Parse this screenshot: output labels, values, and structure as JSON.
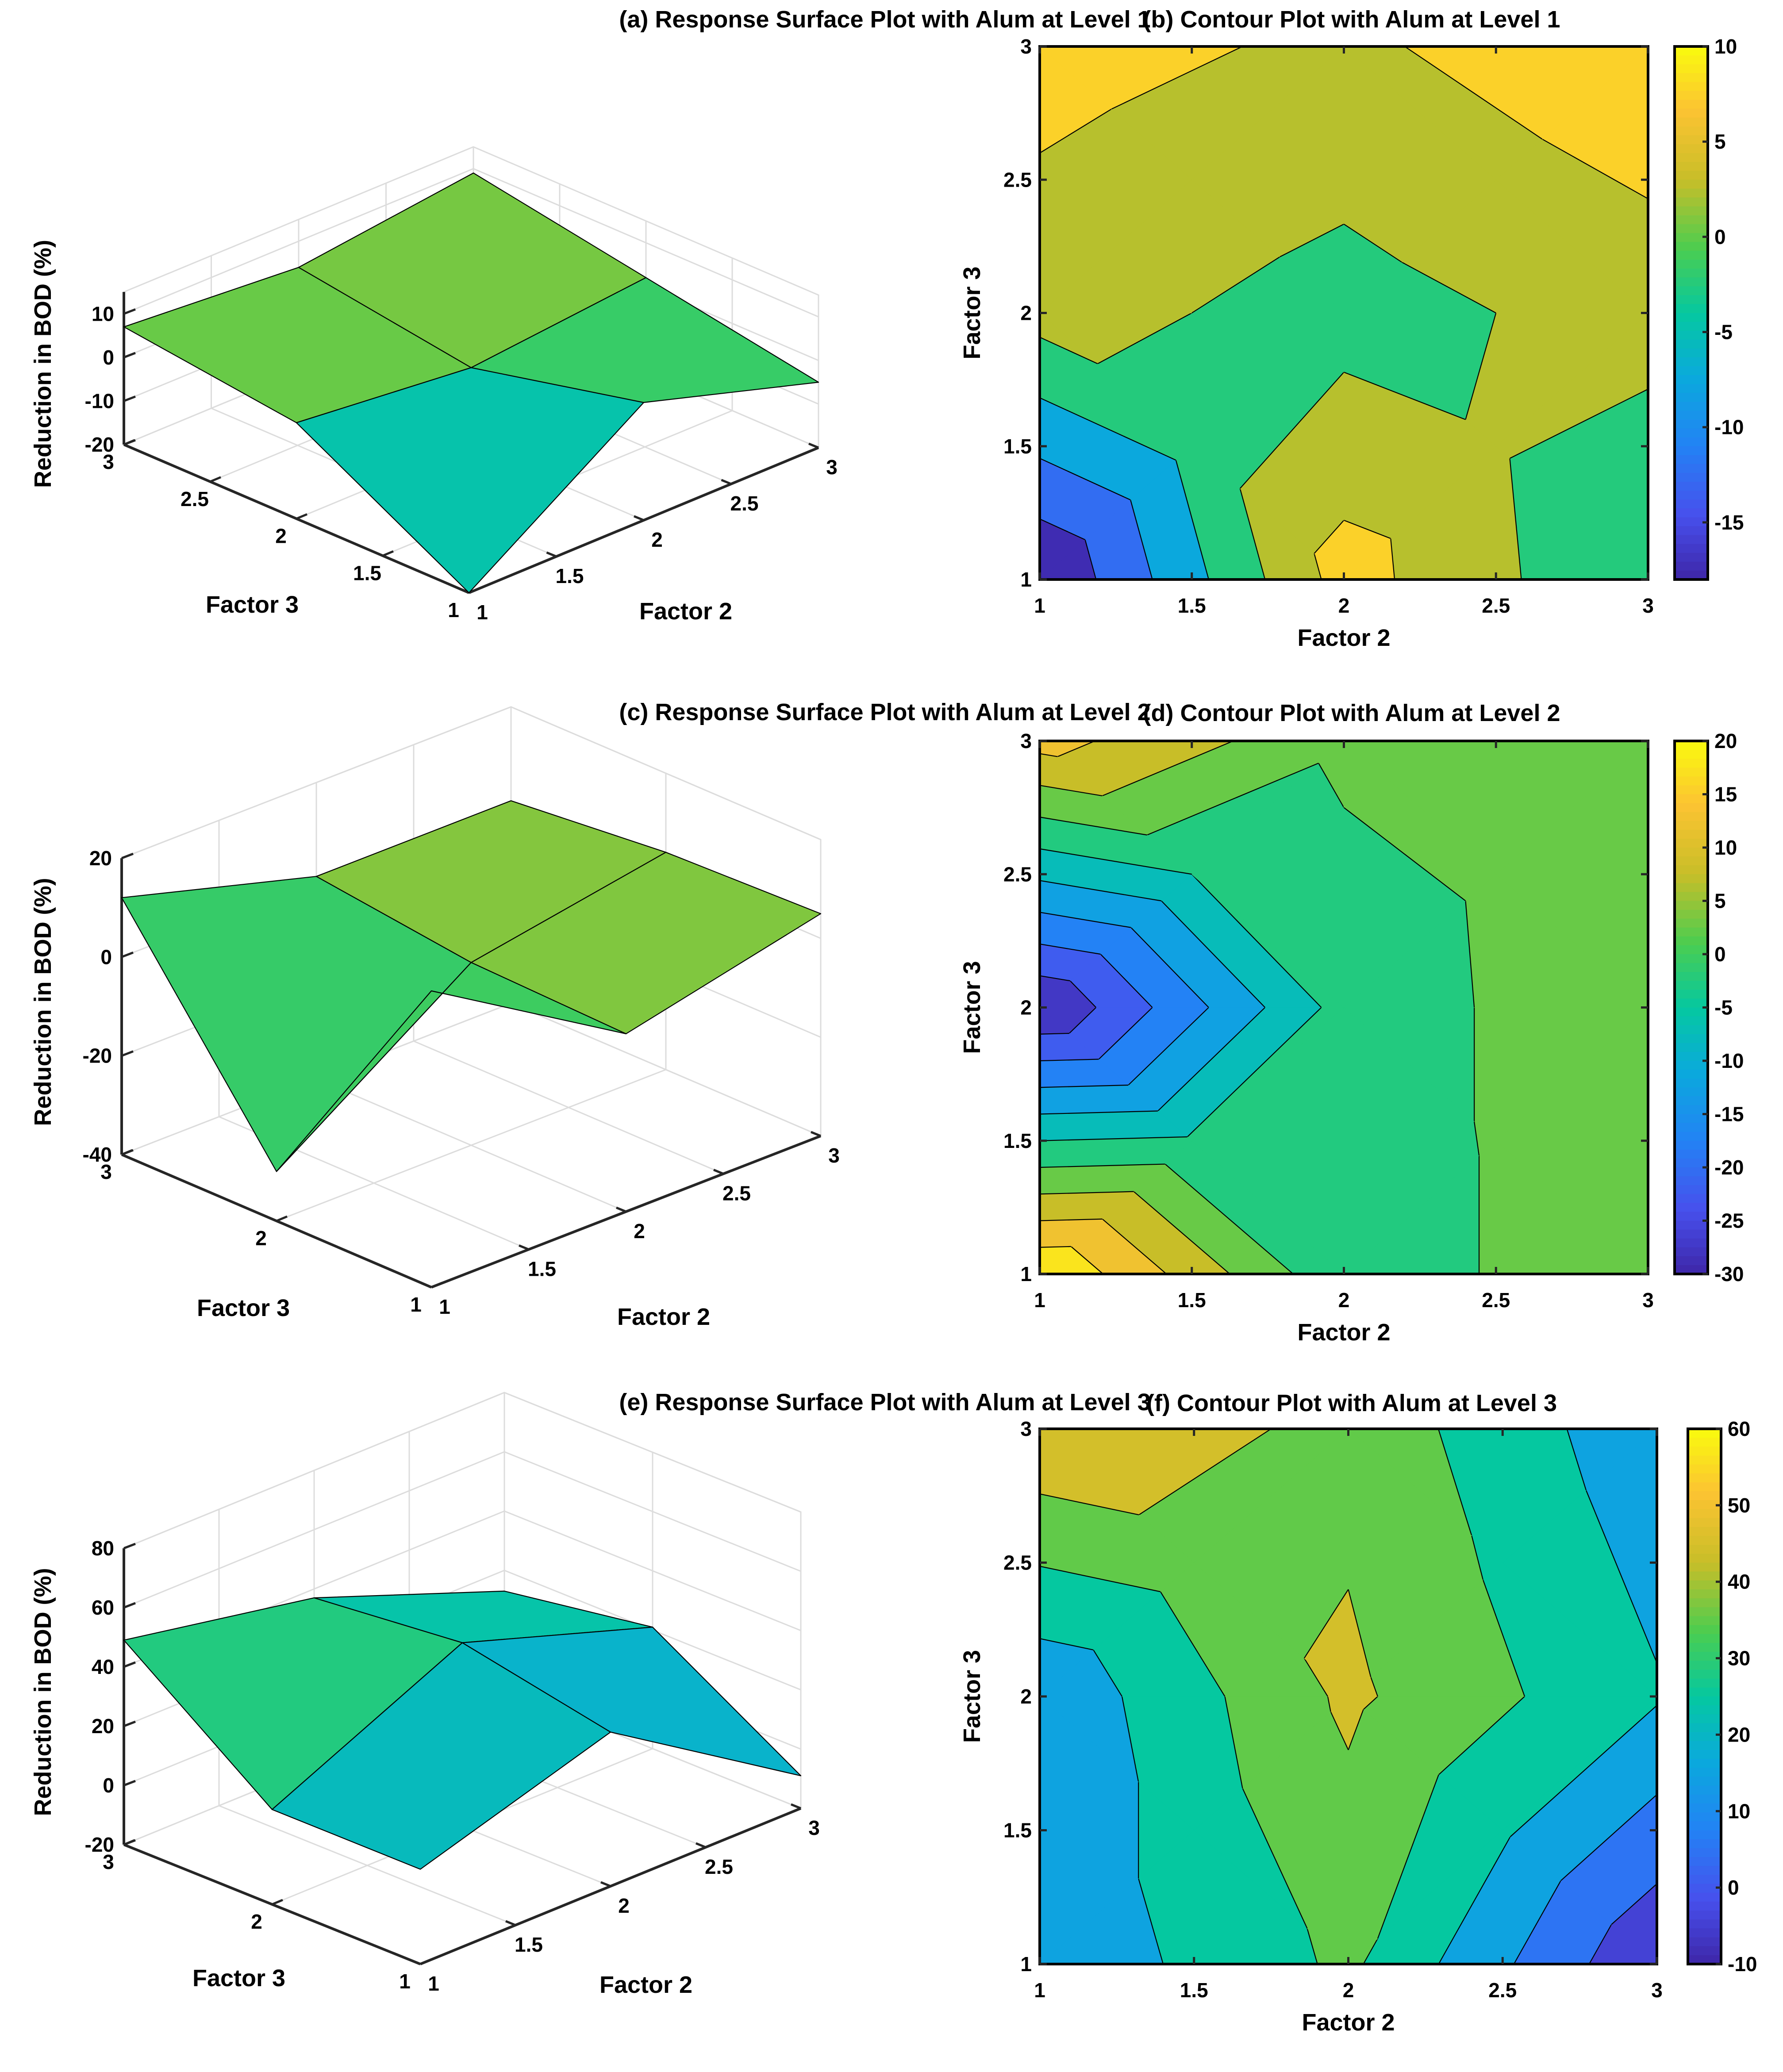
{
  "chart_data": [
    {
      "panel": "a",
      "type": "surface",
      "title": "(a) Response Surface Plot with Alum at Level 1",
      "xlabel": "Factor 2",
      "ylabel": "Factor 3",
      "zlabel": "Reduction in BOD (%)",
      "x": [
        1,
        2,
        3
      ],
      "y": [
        1,
        2,
        3
      ],
      "z": [
        [
          -20,
          7,
          -5
        ],
        [
          2,
          -2,
          2
        ],
        [
          7,
          4,
          9
        ]
      ],
      "zlim": [
        -20,
        15
      ],
      "xticks": [
        "1",
        "1.5",
        "2",
        "2.5",
        "3"
      ],
      "yticks": [
        "1",
        "1.5",
        "2",
        "2.5",
        "3"
      ],
      "zticks": [
        "-20",
        "-10",
        "0",
        "10"
      ],
      "grid": true
    },
    {
      "panel": "b",
      "type": "contour",
      "title": "(b) Contour Plot with Alum at Level 1",
      "xlabel": "Factor 2",
      "ylabel": "Factor 3",
      "x": [
        1,
        2,
        3
      ],
      "y": [
        1,
        2,
        3
      ],
      "z": [
        [
          -20,
          7,
          -5
        ],
        [
          2,
          -2,
          2
        ],
        [
          7,
          4,
          9
        ]
      ],
      "levels": [
        -15,
        -10,
        -5,
        0,
        5
      ],
      "clim": [
        -18,
        10
      ],
      "xticks": [
        "1",
        "1.5",
        "2",
        "2.5",
        "3"
      ],
      "yticks": [
        "1",
        "1.5",
        "2",
        "2.5",
        "3"
      ],
      "colorbar_ticks": [
        "-15",
        "-10",
        "-5",
        "0",
        "5",
        "10"
      ],
      "grid": false
    },
    {
      "panel": "c",
      "type": "surface",
      "title": "(c) Response Surface Plot with Alum at Level 2",
      "xlabel": "Factor 2",
      "ylabel": "Factor 3",
      "zlabel": "Reduction in BOD (%)",
      "x": [
        1,
        2,
        3
      ],
      "y": [
        1,
        2,
        3
      ],
      "z": [
        [
          20,
          -4,
          5
        ],
        [
          -30,
          -3,
          4
        ],
        [
          12,
          1,
          1
        ]
      ],
      "zlim": [
        -40,
        20
      ],
      "xticks": [
        "1",
        "1.5",
        "2",
        "2.5",
        "3"
      ],
      "yticks": [
        "1",
        "2",
        "3"
      ],
      "zticks": [
        "-40",
        "-20",
        "0",
        "20"
      ],
      "grid": true
    },
    {
      "panel": "d",
      "type": "contour",
      "title": "(d) Contour Plot with Alum at Level 2",
      "xlabel": "Factor 2",
      "ylabel": "Factor 3",
      "x": [
        1,
        2,
        3
      ],
      "y": [
        1,
        2,
        3
      ],
      "z": [
        [
          20,
          -4,
          5
        ],
        [
          -30,
          -3,
          4
        ],
        [
          12,
          1,
          1
        ]
      ],
      "levels": [
        -25,
        -20,
        -15,
        -10,
        -5,
        0,
        5,
        10,
        15
      ],
      "clim": [
        -30,
        20
      ],
      "xticks": [
        "1",
        "1.5",
        "2",
        "2.5",
        "3"
      ],
      "yticks": [
        "1",
        "1.5",
        "2",
        "2.5",
        "3"
      ],
      "colorbar_ticks": [
        "-30",
        "-25",
        "-20",
        "-15",
        "-10",
        "-5",
        "0",
        "5",
        "10",
        "15",
        "20"
      ],
      "grid": false
    },
    {
      "panel": "e",
      "type": "surface",
      "title": "(e) Response Surface Plot with Alum at Level 3",
      "xlabel": "Factor 2",
      "ylabel": "Factor 3",
      "zlabel": "Reduction in BOD (%)",
      "x": [
        1,
        2,
        3
      ],
      "y": [
        1,
        2,
        3
      ],
      "z": [
        [
          12,
          32,
          -9
        ],
        [
          12,
          42,
          21
        ],
        [
          49,
          37,
          13
        ]
      ],
      "zlim": [
        -20,
        80
      ],
      "xticks": [
        "1",
        "1.5",
        "2",
        "2.5",
        "3"
      ],
      "yticks": [
        "1",
        "2",
        "3"
      ],
      "zticks": [
        "-20",
        "0",
        "20",
        "40",
        "60",
        "80"
      ],
      "grid": true
    },
    {
      "panel": "f",
      "type": "contour",
      "title": "(f) Contour Plot with Alum at Level 3",
      "xlabel": "Factor 2",
      "ylabel": "Factor 3",
      "x": [
        1,
        2,
        3
      ],
      "y": [
        1,
        2,
        3
      ],
      "z": [
        [
          12,
          32,
          -9
        ],
        [
          12,
          42,
          21
        ],
        [
          49,
          37,
          13
        ]
      ],
      "levels": [
        0,
        10,
        20,
        30,
        40
      ],
      "clim": [
        -10,
        60
      ],
      "xticks": [
        "1",
        "1.5",
        "2",
        "2.5",
        "3"
      ],
      "yticks": [
        "1",
        "1.5",
        "2",
        "2.5",
        "3"
      ],
      "colorbar_ticks": [
        "-10",
        "0",
        "10",
        "20",
        "30",
        "40",
        "50",
        "60"
      ],
      "grid": false
    }
  ]
}
